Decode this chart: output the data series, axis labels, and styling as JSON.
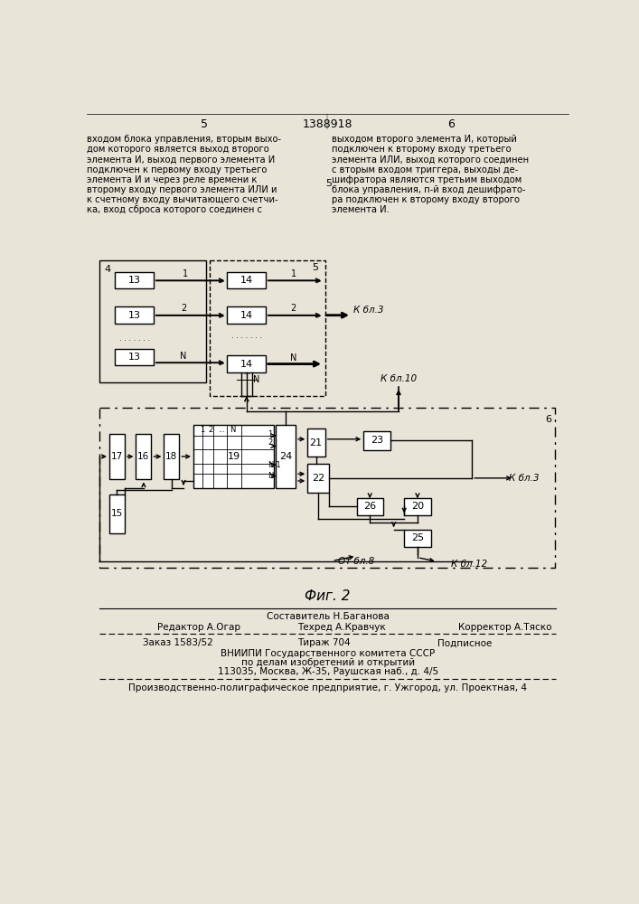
{
  "bg_color": "#e8e4d8",
  "page_width": 7.07,
  "page_height": 10.0,
  "title_number": "1388918",
  "page_left": "5",
  "page_right": "6",
  "left_col_text": [
    "входом блока управления, вторым выхо-",
    "дом которого является выход второго",
    "элемента И, выход первого элемента И",
    "подключен к первому входу третьего",
    "элемента И и через реле времени к",
    "второму входу первого элемента ИЛИ и",
    "к счетному входу вычитающего счетчи-",
    "ка, вход сброса которого соединен с"
  ],
  "right_col_text": [
    "выходом второго элемента И, который",
    "подключен к второму входу третьего",
    "элемента ИЛИ, выход которого соединен",
    "с вторым входом триггера, выходы де-",
    "шифратора являются третьим выходом",
    "блока управления, п-й вход дешифрато-",
    "ра подключен к второму входу второго",
    "элемента И."
  ],
  "col_5_label": "5",
  "fig_caption": "Фиг. 2",
  "footer_sestavitel": "Составитель Н.Баганова",
  "footer_redaktor": "Редактор А.Огар",
  "footer_tehred": "Техред А.Кравчук",
  "footer_korrektor": "Корректор А.Тяско",
  "footer_zakaz": "Заказ 1583/52",
  "footer_tirazh": "Тираж 704",
  "footer_podpisnoe": "Подписное",
  "footer_line1": "ВНИИПИ Государственного комитета СССР",
  "footer_line2": "по делам изобретений и открытий",
  "footer_line3": "113035, Москва, Ж-35, Раушская наб., д. 4/5",
  "footer_factory": "Производственно-полиграфическое предприятие, г. Ужгород, ул. Проектная, 4"
}
